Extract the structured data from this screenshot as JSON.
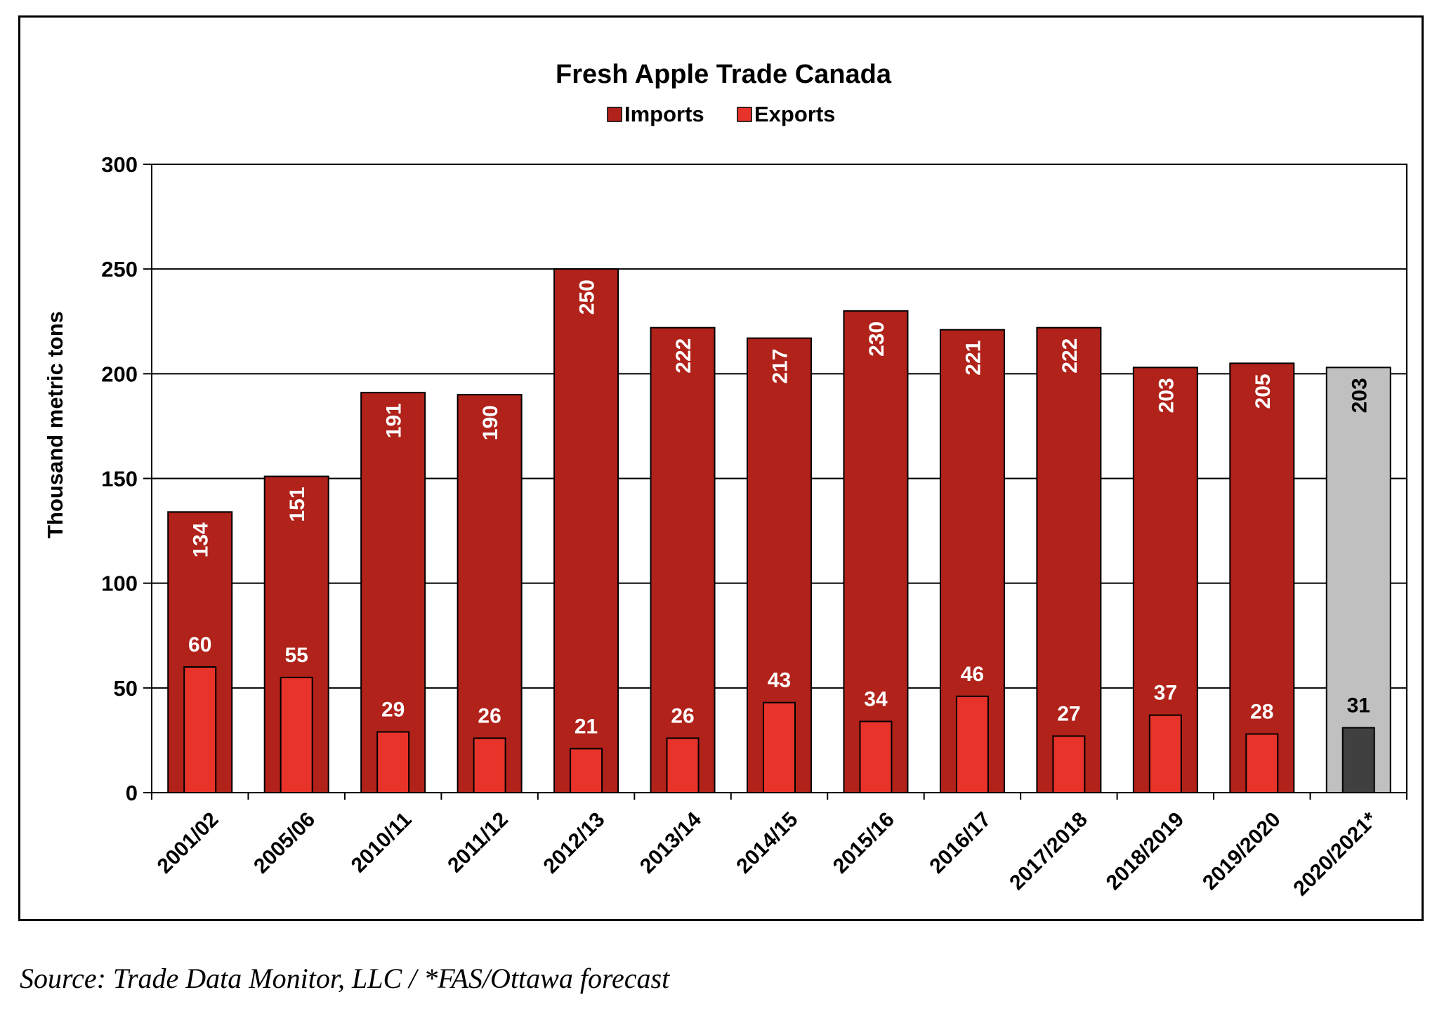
{
  "chart_data": {
    "type": "bar",
    "title": "Fresh Apple Trade Canada",
    "xlabel": "",
    "ylabel": "Thousand metric tons",
    "ylim": [
      0,
      300
    ],
    "yticks": [
      0,
      50,
      100,
      150,
      200,
      250,
      300
    ],
    "grid": true,
    "legend_position": "top-center",
    "categories": [
      "2001/02",
      "2005/06",
      "2010/11",
      "2011/12",
      "2012/13",
      "2013/14",
      "2014/15",
      "2015/16",
      "2016/17",
      "2017/2018",
      "2018/2019",
      "2019/2020",
      "2020/2021*"
    ],
    "series": [
      {
        "name": "Imports",
        "color": "#B0221A",
        "values": [
          134,
          151,
          191,
          190,
          250,
          222,
          217,
          230,
          221,
          222,
          203,
          205,
          203
        ]
      },
      {
        "name": "Exports",
        "color": "#E8332A",
        "values": [
          60,
          55,
          29,
          26,
          21,
          26,
          43,
          34,
          46,
          27,
          37,
          28,
          31
        ]
      }
    ],
    "forecast_category": "2020/2021*",
    "forecast_colors": {
      "Imports": "#C0C0C0",
      "Exports": "#404040"
    }
  },
  "source_note": "Source: Trade Data Monitor, LLC / *FAS/Ottawa forecast"
}
